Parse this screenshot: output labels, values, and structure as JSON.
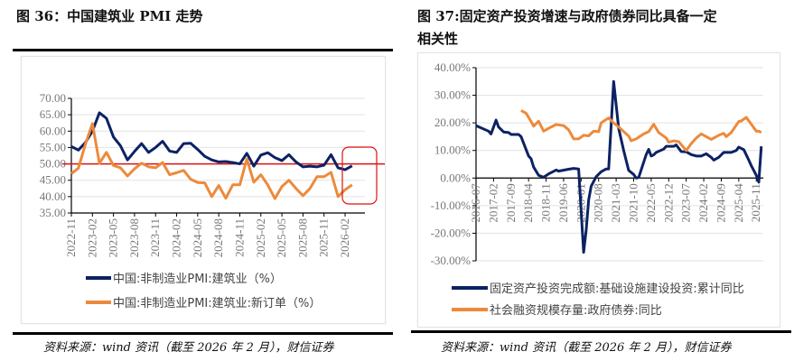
{
  "left_panel": {
    "title": "图 36：中国建筑业 PMI 走势",
    "source": "资料来源：wind 资讯（截至 2026 年 2 月），财信证券"
  },
  "right_panel": {
    "title_line1": "图 37:固定资产投资增速与政府债券同比具备一定",
    "title_line2": "相关性",
    "source": "资料来源：wind 资讯（截至 2026 年 2 月），财信证券"
  },
  "colors": {
    "navy": "#0b2263",
    "orange": "#ec8a3c",
    "reference_red": "#e01010",
    "highlight_box": "#e01010"
  },
  "chart_data": [
    {
      "type": "line",
      "title": "",
      "ylim": [
        35,
        70
      ],
      "yticks": [
        "70.00",
        "65.00",
        "60.00",
        "55.00",
        "50.00",
        "45.00",
        "40.00",
        "35.00"
      ],
      "xtick_labels": [
        "2022-11",
        "2023-02",
        "2023-05",
        "2023-08",
        "2023-11",
        "2024-02",
        "2024-05",
        "2024-08",
        "2024-11",
        "2025-02",
        "2025-05",
        "2025-08",
        "2025-11",
        "2026-02"
      ],
      "x_start": "2022-11",
      "x_frequency": "monthly",
      "reference_line": 50,
      "highlight": "last 3 months (2026-01 to 2026-03) boxed in red",
      "grid": true,
      "legend_placement": "bottom",
      "series": [
        {
          "name": "中国:非制造业PMI:建筑业（%）",
          "color": "#0b2263",
          "values": [
            55.3,
            54.2,
            56.5,
            60.0,
            65.6,
            63.9,
            58.2,
            55.5,
            51.2,
            53.8,
            56.2,
            53.5,
            55.0,
            56.9,
            53.9,
            53.5,
            56.2,
            56.3,
            54.4,
            52.3,
            51.2,
            50.6,
            50.7,
            50.4,
            50.0,
            53.2,
            49.3,
            52.7,
            53.4,
            51.9,
            51.0,
            52.8,
            50.6,
            49.1,
            49.3,
            49.1,
            49.6,
            52.8,
            48.8,
            48.2,
            49.4
          ]
        },
        {
          "name": "中国:非制造业PMI:建筑业:新订单（%）",
          "color": "#ec8a3c",
          "values": [
            47.0,
            48.7,
            56.0,
            62.3,
            50.2,
            53.5,
            49.5,
            48.8,
            46.3,
            48.5,
            50.2,
            49.1,
            48.8,
            50.4,
            46.7,
            47.3,
            48.0,
            45.3,
            44.3,
            44.2,
            40.0,
            43.4,
            39.5,
            43.6,
            43.6,
            51.5,
            44.4,
            46.7,
            43.5,
            39.4,
            43.1,
            45.0,
            42.5,
            40.3,
            42.5,
            46.1,
            46.1,
            47.4,
            40.0,
            42.1,
            43.6
          ]
        }
      ]
    },
    {
      "type": "line",
      "title": "",
      "ylim": [
        -30,
        40
      ],
      "yticks": [
        "40.00%",
        "30.00%",
        "20.00%",
        "10.00%",
        "0.00%",
        "-10.00%",
        "-20.00%",
        "-30.00%"
      ],
      "xtick_labels": [
        "2016-07",
        "2017-02",
        "2017-09",
        "2018-04",
        "2018-11",
        "2019-06",
        "2020-01",
        "2020-08",
        "2021-03",
        "2021-10",
        "2022-05",
        "2022-12",
        "2023-07",
        "2024-02",
        "2024-09",
        "2025-04",
        "2025-11"
      ],
      "grid": true,
      "legend_placement": "bottom",
      "series": [
        {
          "name": "固定资产投资完成额:基础设施建设投资:累计同比",
          "color": "#0b2263",
          "points": [
            [
              "2016-07",
              19
            ],
            [
              "2016-12",
              17
            ],
            [
              "2017-01",
              16
            ],
            [
              "2017-03",
              21
            ],
            [
              "2017-04",
              18.5
            ],
            [
              "2017-06",
              16.7
            ],
            [
              "2017-08",
              16.5
            ],
            [
              "2017-09",
              15.8
            ],
            [
              "2017-12",
              15.8
            ],
            [
              "2018-01",
              15
            ],
            [
              "2018-04",
              8
            ],
            [
              "2018-05",
              7
            ],
            [
              "2018-06",
              4
            ],
            [
              "2018-08",
              1
            ],
            [
              "2018-10",
              0.3
            ],
            [
              "2018-12",
              1.5
            ],
            [
              "2019-03",
              2.9
            ],
            [
              "2019-04",
              2.5
            ],
            [
              "2019-08",
              3.2
            ],
            [
              "2019-10",
              3.5
            ],
            [
              "2019-12",
              3.3
            ],
            [
              "2020-02",
              -26.9
            ],
            [
              "2020-03",
              -19
            ],
            [
              "2020-04",
              -8
            ],
            [
              "2020-05",
              -3
            ],
            [
              "2020-07",
              0.5
            ],
            [
              "2020-09",
              2.3
            ],
            [
              "2020-11",
              3.3
            ],
            [
              "2020-12",
              3.3
            ],
            [
              "2021-02",
              35
            ],
            [
              "2021-04",
              18
            ],
            [
              "2021-06",
              10
            ],
            [
              "2021-08",
              2.8
            ],
            [
              "2021-10",
              1.3
            ],
            [
              "2021-11",
              0
            ],
            [
              "2021-12",
              0.2
            ],
            [
              "2022-03",
              8.5
            ],
            [
              "2022-04",
              10.4
            ],
            [
              "2022-05",
              8
            ],
            [
              "2022-06",
              8.4
            ],
            [
              "2022-07",
              9.3
            ],
            [
              "2022-10",
              10.5
            ],
            [
              "2022-11",
              11.5
            ],
            [
              "2023-02",
              11.5
            ],
            [
              "2023-03",
              12
            ],
            [
              "2023-05",
              9.6
            ],
            [
              "2023-07",
              9.5
            ],
            [
              "2023-09",
              8.5
            ],
            [
              "2023-11",
              8
            ],
            [
              "2024-01",
              8
            ],
            [
              "2024-03",
              8.8
            ],
            [
              "2024-05",
              7.5
            ],
            [
              "2024-06",
              6.5
            ],
            [
              "2024-08",
              7.5
            ],
            [
              "2024-10",
              9.3
            ],
            [
              "2025-01",
              9.3
            ],
            [
              "2025-03",
              10
            ],
            [
              "2025-04",
              11.2
            ],
            [
              "2025-06",
              10.3
            ],
            [
              "2025-08",
              6.5
            ],
            [
              "2025-09",
              4.5
            ],
            [
              "2025-11",
              1
            ],
            [
              "2025-12",
              -1.5
            ],
            [
              "2026-01",
              11.5
            ]
          ]
        },
        {
          "name": "社会融资规模存量:政府债券:同比",
          "color": "#ec8a3c",
          "points": [
            [
              "2018-01",
              24.5
            ],
            [
              "2018-03",
              23.5
            ],
            [
              "2018-05",
              20.5
            ],
            [
              "2018-06",
              18.8
            ],
            [
              "2018-08",
              20.6
            ],
            [
              "2018-10",
              17
            ],
            [
              "2019-01",
              18.5
            ],
            [
              "2019-03",
              19.4
            ],
            [
              "2019-06",
              19
            ],
            [
              "2019-08",
              17.5
            ],
            [
              "2019-10",
              14.2
            ],
            [
              "2019-12",
              14.2
            ],
            [
              "2020-02",
              15.5
            ],
            [
              "2020-04",
              15.3
            ],
            [
              "2020-06",
              17
            ],
            [
              "2020-08",
              16.8
            ],
            [
              "2020-09",
              20
            ],
            [
              "2020-12",
              21.8
            ],
            [
              "2021-02",
              20
            ],
            [
              "2021-04",
              18.5
            ],
            [
              "2021-08",
              15.2
            ],
            [
              "2021-09",
              13.5
            ],
            [
              "2021-11",
              14.2
            ],
            [
              "2022-02",
              16
            ],
            [
              "2022-04",
              16.8
            ],
            [
              "2022-06",
              19.5
            ],
            [
              "2022-08",
              16.5
            ],
            [
              "2022-11",
              14.5
            ],
            [
              "2022-12",
              13
            ],
            [
              "2023-02",
              13.5
            ],
            [
              "2023-04",
              13.2
            ],
            [
              "2023-07",
              10
            ],
            [
              "2023-09",
              12.5
            ],
            [
              "2023-11",
              14.5
            ],
            [
              "2024-01",
              16
            ],
            [
              "2024-03",
              15
            ],
            [
              "2024-05",
              14
            ],
            [
              "2024-08",
              15.5
            ],
            [
              "2024-10",
              16.2
            ],
            [
              "2024-11",
              15
            ],
            [
              "2025-01",
              16.5
            ],
            [
              "2025-04",
              20.5
            ],
            [
              "2025-05",
              20.7
            ],
            [
              "2025-07",
              22
            ],
            [
              "2025-09",
              19.5
            ],
            [
              "2025-11",
              17
            ],
            [
              "2025-12",
              17
            ],
            [
              "2026-01",
              16.5
            ]
          ]
        }
      ]
    }
  ]
}
